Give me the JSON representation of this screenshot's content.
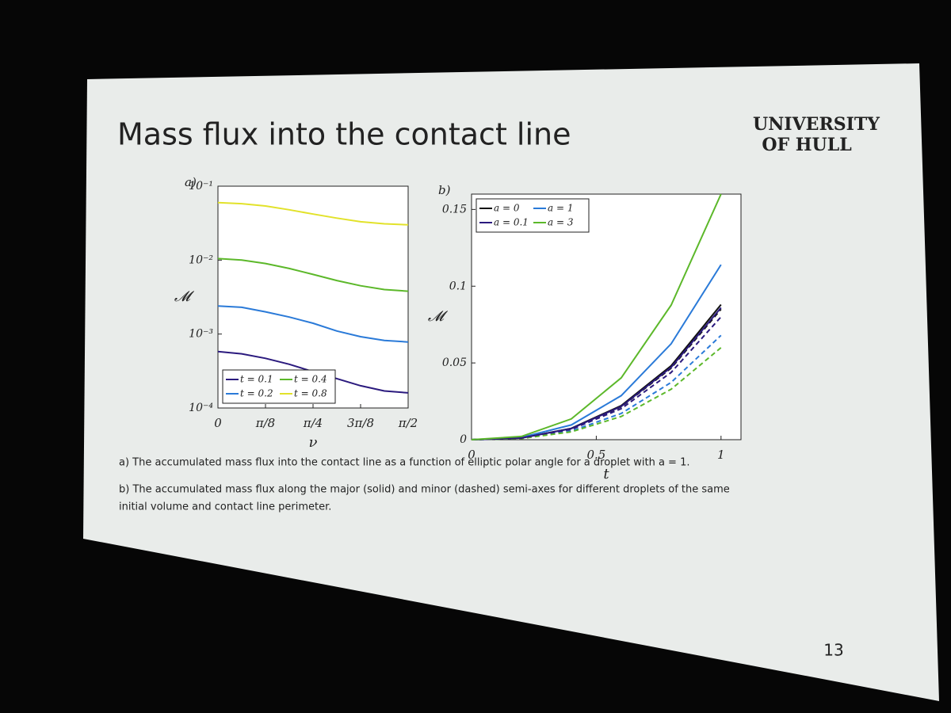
{
  "slide": {
    "title": "Mass flux into the contact line",
    "logo": [
      "UNIVERSITY",
      "OF HULL"
    ],
    "captions": [
      "a) The accumulated mass flux into the contact line as a function of elliptic polar angle for a droplet with a = 1.",
      "b) The accumulated mass flux along the major (solid) and minor (dashed) semi-axes for different droplets of the same",
      "initial volume and contact line perimeter."
    ],
    "page_number": "13"
  },
  "chart_data": [
    {
      "type": "line",
      "label": "a)",
      "xlabel": "ν",
      "ylabel": "𝓜",
      "log_y": true,
      "legend": "lower left",
      "x": [
        0,
        0.19635,
        0.3927,
        0.58905,
        0.7854,
        0.98175,
        1.1781,
        1.37445,
        1.5708
      ],
      "xlim": [
        0,
        1.5708
      ],
      "xticks": [
        0,
        {
          "value": 0.3927,
          "label": "π/8"
        },
        {
          "value": 0.7854,
          "label": "π/4"
        },
        {
          "value": 1.1781,
          "label": "3π/8"
        },
        {
          "value": 1.5708,
          "label": "π/2"
        }
      ],
      "ylim": [
        0.0001,
        0.1
      ],
      "yticks": [
        {
          "value": 0.0001,
          "label": "10⁻⁴"
        },
        {
          "value": 0.001,
          "label": "10⁻³"
        },
        {
          "value": 0.01,
          "label": "10⁻²"
        },
        {
          "value": 0.1,
          "label": "10⁻¹"
        }
      ],
      "series": [
        {
          "name": "t = 0.1",
          "color": "#2b1a7e",
          "values": [
            0.00058,
            0.00054,
            0.00047,
            0.00039,
            0.00031,
            0.00025,
            0.0002,
            0.00017,
            0.00016
          ]
        },
        {
          "name": "t = 0.4",
          "color": "#5cb82a",
          "values": [
            0.0105,
            0.01,
            0.009,
            0.0077,
            0.0064,
            0.0053,
            0.0045,
            0.004,
            0.0038
          ]
        },
        {
          "name": "t = 0.2",
          "color": "#2a7ad8",
          "values": [
            0.0024,
            0.0023,
            0.002,
            0.0017,
            0.0014,
            0.0011,
            0.00092,
            0.00082,
            0.00078
          ]
        },
        {
          "name": "t = 0.8",
          "color": "#e2e22a",
          "values": [
            0.06,
            0.058,
            0.054,
            0.048,
            0.042,
            0.037,
            0.033,
            0.031,
            0.03
          ]
        }
      ]
    },
    {
      "type": "line",
      "label": "b)",
      "xlabel": "t",
      "ylabel": "𝓜",
      "log_y": false,
      "legend": "upper left",
      "x": [
        0,
        0.2,
        0.4,
        0.6,
        0.8,
        1
      ],
      "xlim": [
        0,
        1.08
      ],
      "xticks": [
        0,
        0.5,
        1
      ],
      "ylim": [
        0,
        0.16
      ],
      "yticks": [
        0,
        0.05,
        0.1,
        0.15
      ],
      "series": [
        {
          "name": "a = 0",
          "color": "#111111",
          "values": [
            0,
            0.0011,
            0.0074,
            0.0222,
            0.0482,
            0.088
          ],
          "minor_values": [
            0,
            0.0011,
            0.0072,
            0.0214,
            0.0466,
            0.085
          ]
        },
        {
          "name": "a = 1",
          "color": "#2a7ad8",
          "values": [
            0,
            0.0015,
            0.0096,
            0.0287,
            0.0625,
            0.114
          ],
          "minor_values": [
            0,
            0.0009,
            0.0057,
            0.0171,
            0.0373,
            0.068
          ]
        },
        {
          "name": "a = 0.1",
          "color": "#2b1a7e",
          "values": [
            0,
            0.0011,
            0.0072,
            0.0217,
            0.0471,
            0.086
          ],
          "minor_values": [
            0,
            0.001,
            0.0067,
            0.0202,
            0.0438,
            0.08
          ]
        },
        {
          "name": "a = 3",
          "color": "#5cb82a",
          "values": [
            0,
            0.0021,
            0.0135,
            0.0403,
            0.0877,
            0.16
          ],
          "minor_values": [
            0,
            0.0008,
            0.0051,
            0.0151,
            0.0329,
            0.06
          ]
        }
      ]
    }
  ]
}
